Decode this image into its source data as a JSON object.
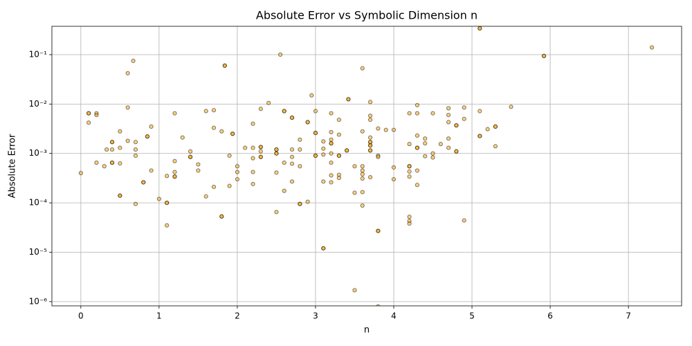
{
  "chart_data": {
    "type": "scatter",
    "title": "Absolute Error vs Symbolic Dimension n",
    "x_label": "n",
    "y_label": "Absolute Error",
    "y_scale": "log",
    "grid": true,
    "color": "#ffa500",
    "edgecolor": "#000000",
    "xlim": [
      -0.37,
      7.68
    ],
    "xticks": [
      0,
      1,
      2,
      3,
      4,
      5,
      6,
      7
    ],
    "ylim": [
      8.2e-07,
      0.375
    ],
    "yticks": [
      {
        "value": 1e-06,
        "label": "10⁻⁶"
      },
      {
        "value": 1e-05,
        "label": "10⁻⁵"
      },
      {
        "value": 0.0001,
        "label": "10⁻⁴"
      },
      {
        "value": 0.001,
        "label": "10⁻³"
      },
      {
        "value": 0.01,
        "label": "10⁻²"
      },
      {
        "value": 0.1,
        "label": "10⁻¹"
      }
    ],
    "x": [
      0.0,
      0.1,
      0.1,
      0.2,
      0.2,
      0.2,
      0.3,
      0.33,
      0.4,
      0.4,
      0.4,
      0.5,
      0.5,
      0.5,
      0.5,
      0.6,
      0.6,
      0.6,
      0.67,
      0.7,
      0.7,
      0.7,
      0.7,
      0.8,
      0.85,
      0.9,
      0.9,
      1.0,
      1.1,
      1.1,
      1.1,
      1.2,
      1.2,
      1.2,
      1.2,
      1.3,
      1.4,
      1.4,
      1.5,
      1.5,
      1.6,
      1.6,
      1.7,
      1.7,
      1.7,
      1.8,
      1.8,
      1.84,
      1.9,
      1.9,
      1.94,
      2.0,
      2.0,
      2.0,
      2.1,
      2.2,
      2.2,
      2.2,
      2.2,
      2.2,
      2.3,
      2.3,
      2.3,
      2.3,
      2.4,
      2.5,
      2.5,
      2.5,
      2.5,
      2.55,
      2.6,
      2.6,
      2.6,
      2.7,
      2.7,
      2.7,
      2.7,
      2.7,
      2.8,
      2.8,
      2.8,
      2.8,
      2.9,
      2.9,
      2.95,
      3.0,
      3.0,
      3.0,
      3.1,
      3.1,
      3.1,
      3.1,
      3.1,
      3.2,
      3.2,
      3.2,
      3.2,
      3.2,
      3.2,
      3.2,
      3.2,
      3.3,
      3.3,
      3.3,
      3.3,
      3.3,
      3.42,
      3.4,
      3.5,
      3.5,
      3.5,
      3.6,
      3.6,
      3.6,
      3.6,
      3.6,
      3.6,
      3.6,
      3.6,
      3.7,
      3.7,
      3.7,
      3.7,
      3.7,
      3.7,
      3.7,
      3.7,
      3.8,
      3.8,
      3.8,
      3.8,
      3.8,
      3.9,
      4.0,
      4.0,
      4.0,
      4.2,
      4.2,
      4.2,
      4.2,
      4.2,
      4.2,
      4.2,
      4.2,
      4.3,
      4.3,
      4.3,
      4.3,
      4.3,
      4.3,
      4.4,
      4.4,
      4.4,
      4.5,
      4.5,
      4.5,
      4.6,
      4.7,
      4.7,
      4.7,
      4.7,
      4.7,
      4.8,
      4.8,
      4.9,
      4.9,
      4.9,
      5.1,
      5.1,
      5.1,
      5.2,
      5.3,
      5.3,
      5.5,
      5.92,
      7.3,
      0.1,
      0.4,
      0.4,
      0.5,
      0.8,
      0.85,
      1.1,
      1.2,
      1.4,
      1.8,
      1.84,
      1.94,
      2.3,
      2.3,
      2.5,
      2.5,
      2.6,
      2.7,
      2.8,
      2.9,
      3.0,
      3.0,
      3.1,
      3.2,
      3.3,
      3.42,
      3.4,
      3.7,
      3.7,
      3.7,
      3.8,
      4.2,
      4.3,
      4.8,
      4.8,
      5.1,
      5.1,
      5.3,
      5.92
    ],
    "values": [
      0.0004,
      0.0065,
      0.0042,
      0.0065,
      0.006,
      0.00065,
      0.00055,
      0.0012,
      0.0017,
      0.0012,
      0.00065,
      0.0028,
      0.0013,
      0.00063,
      0.00014,
      0.042,
      0.0085,
      0.0018,
      0.075,
      0.0017,
      0.0012,
      0.0009,
      9.5e-05,
      0.00026,
      0.0022,
      0.0035,
      0.00045,
      0.00012,
      0.0001,
      0.00035,
      3.5e-05,
      0.0065,
      0.0007,
      0.00042,
      0.00034,
      0.0021,
      0.0011,
      0.00085,
      0.0006,
      0.00045,
      0.0072,
      0.000135,
      0.0075,
      0.0033,
      0.00021,
      0.0028,
      5.3e-05,
      0.06,
      0.0009,
      0.00022,
      0.0025,
      0.00055,
      0.00042,
      0.0003,
      0.0013,
      0.004,
      0.0013,
      0.0008,
      0.00042,
      0.00024,
      0.008,
      0.00135,
      0.0011,
      0.00085,
      0.0105,
      0.0012,
      0.001,
      0.00041,
      6.5e-05,
      0.1,
      0.0072,
      0.00065,
      0.000175,
      0.0053,
      0.0012,
      0.00085,
      0.00062,
      0.00027,
      0.0019,
      0.0012,
      0.00055,
      9.5e-05,
      0.0043,
      0.000105,
      0.015,
      0.0072,
      0.0026,
      0.0009,
      0.00175,
      0.00125,
      0.00095,
      0.00027,
      1.2e-05,
      0.0065,
      0.0027,
      0.0019,
      0.0016,
      0.001,
      0.00065,
      0.00036,
      0.00026,
      0.0048,
      0.0024,
      0.0009,
      0.00037,
      0.00032,
      0.0125,
      0.00115,
      0.00055,
      0.00016,
      1.7e-06,
      0.053,
      0.0028,
      0.00055,
      0.00045,
      0.00038,
      0.00031,
      0.000165,
      8.8e-05,
      0.011,
      0.0058,
      0.0048,
      0.0021,
      0.0017,
      0.00145,
      0.00115,
      0.00033,
      0.0032,
      0.0009,
      0.00085,
      2.7e-05,
      8e-07,
      0.003,
      0.003,
      0.00052,
      0.0003,
      0.0065,
      0.00155,
      0.00055,
      0.00043,
      0.00034,
      5.2e-05,
      4.3e-05,
      3.8e-05,
      0.0095,
      0.0065,
      0.0023,
      0.0013,
      0.00045,
      0.00023,
      0.002,
      0.0016,
      0.00088,
      0.0065,
      0.001,
      0.00083,
      0.00155,
      0.0082,
      0.006,
      0.0043,
      0.002,
      0.0013,
      0.0037,
      0.0011,
      0.0085,
      0.005,
      4.4e-05,
      0.34,
      0.0072,
      0.00225,
      0.0031,
      0.0035,
      0.0014,
      0.0088,
      0.094,
      0.14,
      0.0065,
      0.0017,
      0.00065,
      0.00014,
      0.00026,
      0.0022,
      0.0001,
      0.00034,
      0.00085,
      5.3e-05,
      0.06,
      0.0025,
      0.00135,
      0.00085,
      0.0012,
      0.001,
      0.0072,
      0.0053,
      9.5e-05,
      0.0043,
      0.0026,
      0.0009,
      1.2e-05,
      0.0016,
      0.0009,
      0.0125,
      0.00115,
      0.0017,
      0.00145,
      0.00115,
      2.7e-05,
      0.00055,
      0.0013,
      0.0037,
      0.0011,
      0.34,
      0.00225,
      0.0035,
      0.094
    ]
  }
}
